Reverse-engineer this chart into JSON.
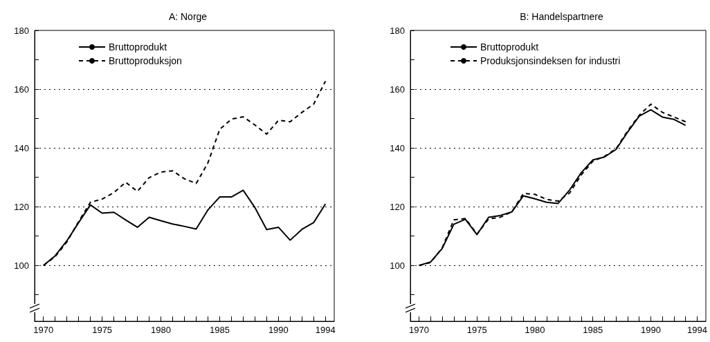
{
  "chart_data": [
    {
      "type": "line",
      "title": "A: Norge",
      "x": [
        1970,
        1971,
        1972,
        1973,
        1974,
        1975,
        1976,
        1977,
        1978,
        1979,
        1980,
        1981,
        1982,
        1983,
        1984,
        1985,
        1986,
        1987,
        1988,
        1989,
        1990,
        1991,
        1992,
        1993,
        1994
      ],
      "series": [
        {
          "name": "Bruttoprodukt",
          "color": "#000000",
          "line_style": "solid",
          "values": [
            100,
            103.3,
            108.4,
            114.6,
            120.6,
            117.8,
            118.1,
            115.5,
            113.0,
            116.4,
            115.2,
            114.1,
            113.3,
            112.4,
            118.9,
            123.3,
            123.3,
            125.6,
            119.7,
            112.2,
            113.0,
            108.6,
            112.3,
            114.6,
            120.9
          ]
        },
        {
          "name": "Bruttoproduksjon",
          "color": "#000000",
          "line_style": "dashed",
          "values": [
            100,
            103,
            108,
            115,
            121.5,
            122.6,
            124.8,
            128.3,
            125.2,
            129.9,
            131.8,
            132.2,
            129.5,
            127.9,
            134.9,
            146.3,
            149.8,
            150.6,
            147.8,
            144.7,
            149.4,
            148.9,
            152.1,
            154.9,
            162.7
          ]
        }
      ],
      "xlim": [
        1969.25,
        1994.75
      ],
      "xticks": [
        1970,
        {
          "value": 1971,
          "label": null
        },
        {
          "value": 1972,
          "label": null
        },
        {
          "value": 1973,
          "label": null
        },
        {
          "value": 1974,
          "label": null
        },
        1975,
        {
          "value": 1976,
          "label": null
        },
        {
          "value": 1977,
          "label": null
        },
        {
          "value": 1978,
          "label": null
        },
        {
          "value": 1979,
          "label": null
        },
        1980,
        {
          "value": 1981,
          "label": null
        },
        {
          "value": 1982,
          "label": null
        },
        {
          "value": 1983,
          "label": null
        },
        {
          "value": 1984,
          "label": null
        },
        1985,
        {
          "value": 1986,
          "label": null
        },
        {
          "value": 1987,
          "label": null
        },
        {
          "value": 1988,
          "label": null
        },
        {
          "value": 1989,
          "label": null
        },
        1990,
        {
          "value": 1991,
          "label": null
        },
        {
          "value": 1992,
          "label": null
        },
        {
          "value": 1993,
          "label": null
        },
        1994
      ],
      "ylim": [
        81,
        180
      ],
      "yticks": [
        {
          "value": 90,
          "label": null
        },
        100,
        {
          "value": 110,
          "label": null
        },
        120,
        {
          "value": 130,
          "label": null
        },
        140,
        {
          "value": 150,
          "label": null
        },
        160,
        {
          "value": 170,
          "label": null
        },
        180
      ],
      "grid": "y",
      "legend": "top left",
      "marker": "none"
    },
    {
      "type": "line",
      "title": "B: Handelspartnere",
      "x": [
        1970,
        1971,
        1972,
        1973,
        1974,
        1975,
        1976,
        1977,
        1978,
        1979,
        1980,
        1981,
        1982,
        1983,
        1984,
        1985,
        1986,
        1987,
        1988,
        1989,
        1990,
        1991,
        1992,
        1993
      ],
      "series": [
        {
          "name": "Bruttoprodukt",
          "color": "#000000",
          "line_style": "solid",
          "values": [
            100,
            101.2,
            105.8,
            114.0,
            115.7,
            110.5,
            116.4,
            117.0,
            118.2,
            123.7,
            122.7,
            121.5,
            121.1,
            125.7,
            131.6,
            135.9,
            136.9,
            139.5,
            145.4,
            150.8,
            153.0,
            150.5,
            149.7,
            147.7
          ]
        },
        {
          "name": "Produksjonsindeksen for industri",
          "color": "#000000",
          "line_style": "dashed",
          "values": [
            100,
            101,
            106,
            115.5,
            116.0,
            110.7,
            115.8,
            116.4,
            118.2,
            124.5,
            124.2,
            122.5,
            121.9,
            124.7,
            130.8,
            135.5,
            137.1,
            139.7,
            145.8,
            151.1,
            154.9,
            152.1,
            150.5,
            148.9
          ]
        }
      ],
      "xlim": [
        1969.25,
        1994.75
      ],
      "xticks": [
        1970,
        {
          "value": 1971,
          "label": null
        },
        {
          "value": 1972,
          "label": null
        },
        {
          "value": 1973,
          "label": null
        },
        {
          "value": 1974,
          "label": null
        },
        1975,
        {
          "value": 1976,
          "label": null
        },
        {
          "value": 1977,
          "label": null
        },
        {
          "value": 1978,
          "label": null
        },
        {
          "value": 1979,
          "label": null
        },
        1980,
        {
          "value": 1981,
          "label": null
        },
        {
          "value": 1982,
          "label": null
        },
        {
          "value": 1983,
          "label": null
        },
        {
          "value": 1984,
          "label": null
        },
        1985,
        {
          "value": 1986,
          "label": null
        },
        {
          "value": 1987,
          "label": null
        },
        {
          "value": 1988,
          "label": null
        },
        {
          "value": 1989,
          "label": null
        },
        1990,
        {
          "value": 1991,
          "label": null
        },
        {
          "value": 1992,
          "label": null
        },
        {
          "value": 1993,
          "label": null
        },
        1994
      ],
      "ylim": [
        81,
        180
      ],
      "yticks": [
        {
          "value": 90,
          "label": null
        },
        100,
        {
          "value": 110,
          "label": null
        },
        120,
        {
          "value": 130,
          "label": null
        },
        140,
        {
          "value": 150,
          "label": null
        },
        160,
        {
          "value": 170,
          "label": null
        },
        180
      ],
      "grid": "y",
      "legend": "top left",
      "marker": "none"
    }
  ]
}
